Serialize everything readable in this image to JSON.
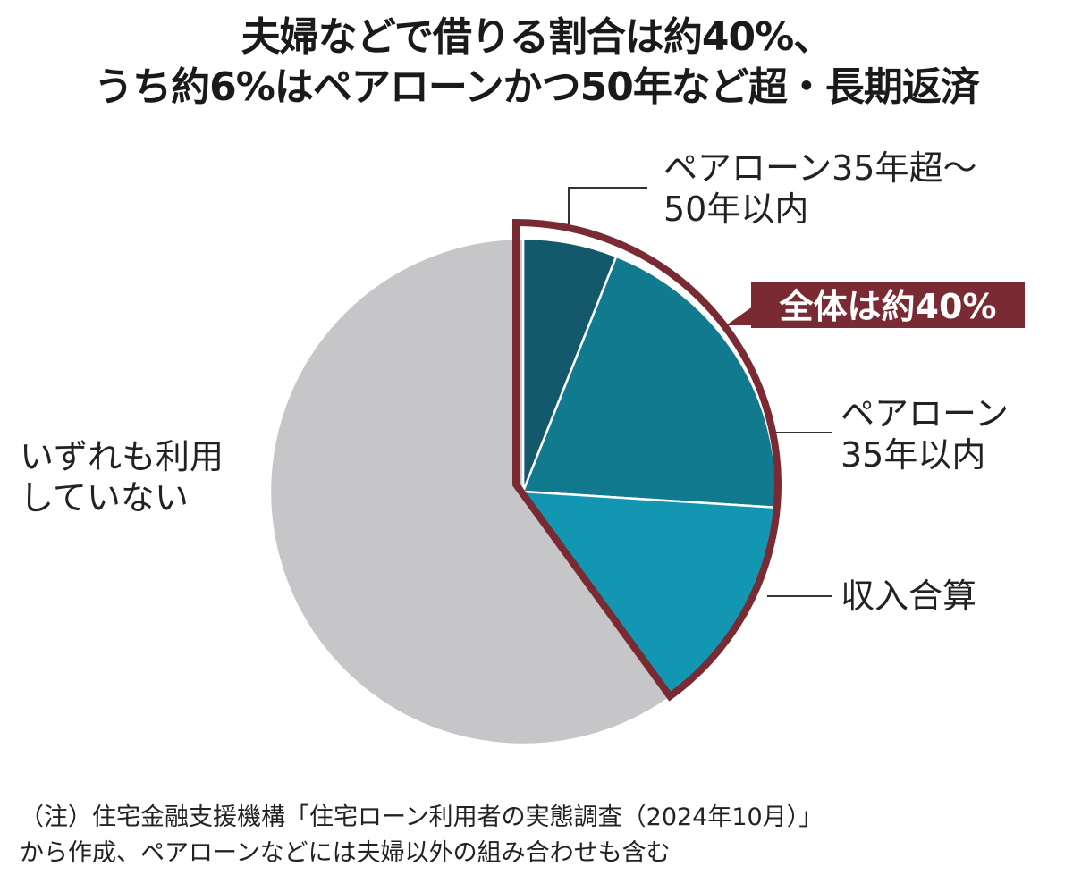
{
  "title_line1": "夫婦などで借りる割合は約40%、",
  "title_line2": "うち約6%はペアローンかつ50年など超・長期返済",
  "chart_data": {
    "type": "pie",
    "start_angle_deg": 0,
    "direction": "clockwise",
    "slices": [
      {
        "label": "ペアローン35年超～50年以内",
        "value": 6,
        "color": "#14586c"
      },
      {
        "label": "ペアローン35年以内",
        "value": 20,
        "color": "#127a8f"
      },
      {
        "label": "収入合算",
        "value": 14,
        "color": "#1296b1"
      },
      {
        "label": "いずれも利用していない",
        "value": 60,
        "color": "#c6c6c8"
      }
    ],
    "highlight": {
      "text": "全体は約40%",
      "color": "#7a2a32",
      "slices": [
        0,
        1,
        2
      ]
    }
  },
  "labels": {
    "pair_long_line1": "ペアローン35年超～",
    "pair_long_line2": "50年以内",
    "pair35_line1": "ペアローン",
    "pair35_line2": "35年以内",
    "income": "収入合算",
    "none_line1": "いずれも利用",
    "none_line2": "していない"
  },
  "note_line1": "（注）住宅金融支援機構「住宅ローン利用者の実態調査（2024年10月）」",
  "note_line2": "から作成、ペアローンなどには夫婦以外の組み合わせも含む"
}
